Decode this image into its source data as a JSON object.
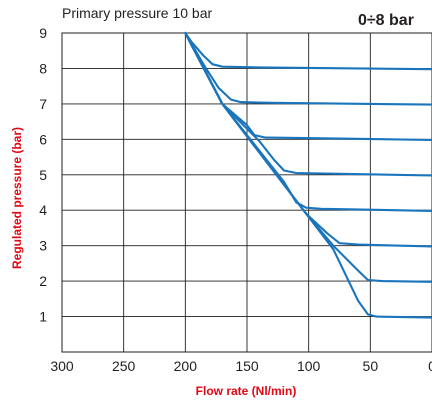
{
  "chart_data": {
    "type": "line",
    "title": "Primary pressure 10 bar",
    "subtitle": "0÷8 bar",
    "xlabel": "Flow rate (Nl/min)",
    "ylabel": "Regulated pressure (bar)",
    "xlim": [
      300,
      0
    ],
    "ylim": [
      0,
      9
    ],
    "x_reversed": true,
    "xticks": [
      300,
      250,
      200,
      150,
      100,
      50,
      0
    ],
    "yticks": [
      1,
      2,
      3,
      4,
      5,
      6,
      7,
      8,
      9
    ],
    "grid": true,
    "colors": {
      "series": "#1a75bc",
      "axis_label": "#e30613",
      "grid": "#231f20"
    },
    "series": [
      {
        "values": [
          [
            200,
            9
          ],
          [
            195,
            8.75
          ],
          [
            185,
            8.35
          ],
          [
            178,
            8.12
          ],
          [
            170,
            8.05
          ],
          [
            140,
            8.03
          ],
          [
            0,
            7.98
          ]
        ]
      },
      {
        "values": [
          [
            200,
            9
          ],
          [
            185,
            8.1
          ],
          [
            173,
            7.45
          ],
          [
            163,
            7.12
          ],
          [
            155,
            7.05
          ],
          [
            130,
            7.03
          ],
          [
            0,
            6.98
          ]
        ]
      },
      {
        "values": [
          [
            200,
            9
          ],
          [
            170,
            7.0
          ],
          [
            150,
            6.4
          ],
          [
            144,
            6.12
          ],
          [
            135,
            6.05
          ],
          [
            110,
            6.04
          ],
          [
            0,
            5.98
          ]
        ]
      },
      {
        "values": [
          [
            200,
            9
          ],
          [
            170,
            7.0
          ],
          [
            140,
            5.95
          ],
          [
            128,
            5.42
          ],
          [
            120,
            5.12
          ],
          [
            110,
            5.05
          ],
          [
            0,
            4.98
          ]
        ]
      },
      {
        "values": [
          [
            200,
            9
          ],
          [
            170,
            7.0
          ],
          [
            120,
            4.8
          ],
          [
            110,
            4.22
          ],
          [
            102,
            4.07
          ],
          [
            90,
            4.04
          ],
          [
            0,
            3.98
          ]
        ]
      },
      {
        "values": [
          [
            200,
            9
          ],
          [
            170,
            7.0
          ],
          [
            102,
            3.9
          ],
          [
            85,
            3.35
          ],
          [
            75,
            3.07
          ],
          [
            60,
            3.03
          ],
          [
            0,
            2.98
          ]
        ]
      },
      {
        "values": [
          [
            200,
            9
          ],
          [
            170,
            7.0
          ],
          [
            102,
            3.9
          ],
          [
            80,
            3.0
          ],
          [
            60,
            2.3
          ],
          [
            52,
            2.03
          ],
          [
            40,
            2.0
          ],
          [
            0,
            1.98
          ]
        ]
      },
      {
        "values": [
          [
            200,
            9
          ],
          [
            170,
            7.0
          ],
          [
            102,
            3.9
          ],
          [
            80,
            2.9
          ],
          [
            60,
            1.45
          ],
          [
            52,
            1.06
          ],
          [
            45,
            1.0
          ],
          [
            0,
            0.97
          ]
        ]
      }
    ]
  }
}
